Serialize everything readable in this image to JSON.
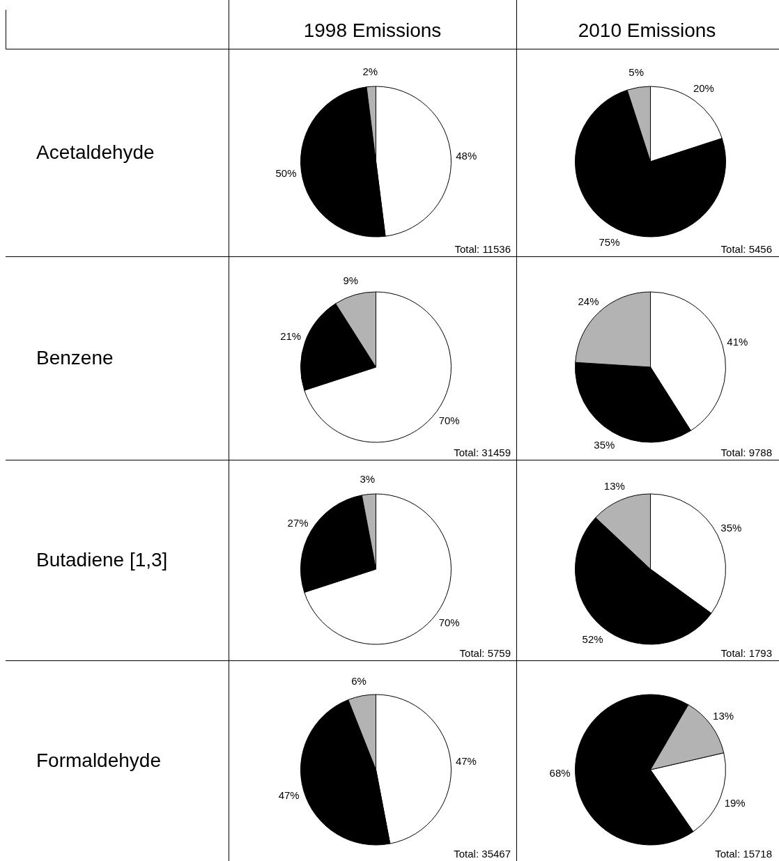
{
  "chart_data": [
    {
      "type": "pie",
      "title": "1998 Emissions",
      "ylabel": "Acetaldehyde",
      "categories": [
        null,
        null,
        null
      ],
      "values": [
        48,
        50,
        2
      ],
      "colors": [
        "#ffffff",
        "#000000",
        "#b3b3b3"
      ],
      "value_labels": [
        "48%",
        "50%",
        "2%"
      ],
      "annotations": [
        "Total: 11536"
      ]
    },
    {
      "type": "pie",
      "title": "2010 Emissions",
      "categories": [
        null,
        null,
        null
      ],
      "values": [
        20,
        75,
        5
      ],
      "colors": [
        "#ffffff",
        "#000000",
        "#b3b3b3"
      ],
      "value_labels": [
        "20%",
        "75%",
        "5%"
      ],
      "annotations": [
        "Total: 5456"
      ]
    },
    {
      "type": "pie",
      "ylabel": "Benzene",
      "categories": [
        null,
        null,
        null
      ],
      "values": [
        70,
        21,
        9
      ],
      "colors": [
        "#ffffff",
        "#000000",
        "#b3b3b3"
      ],
      "value_labels": [
        "70%",
        "21%",
        "9%"
      ],
      "annotations": [
        "Total: 31459"
      ]
    },
    {
      "type": "pie",
      "categories": [
        null,
        null,
        null
      ],
      "values": [
        41,
        35,
        24
      ],
      "colors": [
        "#ffffff",
        "#000000",
        "#b3b3b3"
      ],
      "value_labels": [
        "41%",
        "35%",
        "24%"
      ],
      "annotations": [
        "Total: 9788"
      ]
    },
    {
      "type": "pie",
      "ylabel": "Butadiene [1,3]",
      "categories": [
        null,
        null,
        null
      ],
      "values": [
        70,
        27,
        3
      ],
      "colors": [
        "#ffffff",
        "#000000",
        "#b3b3b3"
      ],
      "value_labels": [
        "70%",
        "27%",
        "3%"
      ],
      "annotations": [
        "Total: 5759"
      ]
    },
    {
      "type": "pie",
      "categories": [
        null,
        null,
        null
      ],
      "values": [
        35,
        52,
        13
      ],
      "colors": [
        "#ffffff",
        "#000000",
        "#b3b3b3"
      ],
      "value_labels": [
        "35%",
        "52%",
        "13%"
      ],
      "annotations": [
        "Total: 1793"
      ]
    },
    {
      "type": "pie",
      "ylabel": "Formaldehyde",
      "categories": [
        null,
        null,
        null
      ],
      "values": [
        47,
        47,
        6
      ],
      "colors": [
        "#ffffff",
        "#000000",
        "#b3b3b3"
      ],
      "value_labels": [
        "47%",
        "47%",
        "6%"
      ],
      "annotations": [
        "Total: 35467"
      ]
    },
    {
      "type": "pie",
      "categories": [
        null,
        null,
        null
      ],
      "values": [
        19,
        68,
        13
      ],
      "colors": [
        "#ffffff",
        "#000000",
        "#b3b3b3"
      ],
      "value_labels": [
        "19%",
        "68%",
        "13%"
      ],
      "annotations": [
        "Total: 15718"
      ]
    }
  ]
}
